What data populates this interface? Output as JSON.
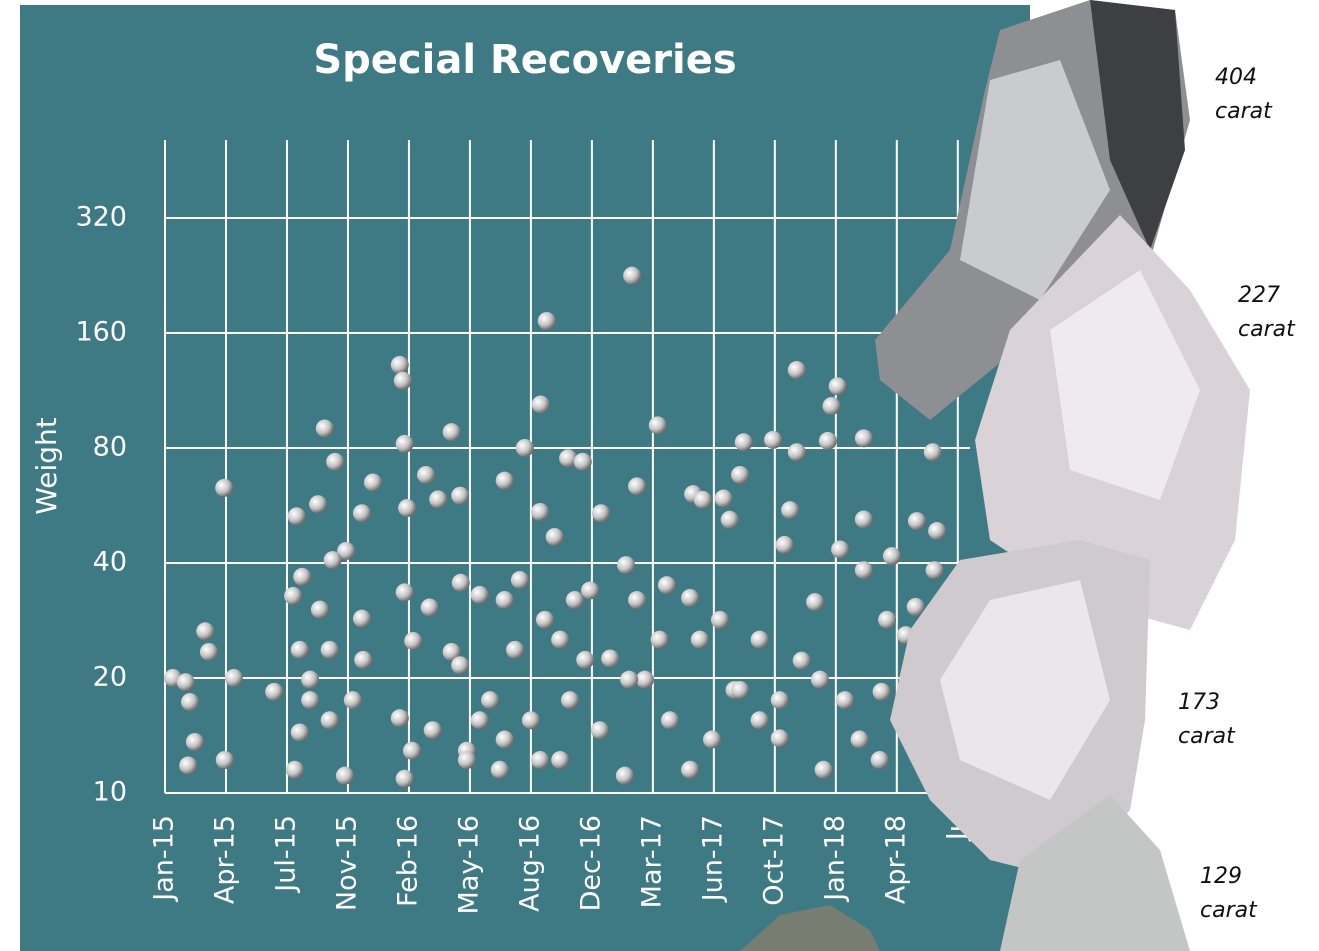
{
  "chart_data": {
    "type": "scatter",
    "title": "Special Recoveries",
    "y_label": "Weight",
    "yscale": "log",
    "grid": true,
    "color": "#c4c4c4",
    "ylim": [
      10,
      512
    ],
    "yticks": [
      10,
      20,
      40,
      80,
      160,
      320
    ],
    "xlim": [
      0,
      13.2
    ],
    "xticks": [
      {
        "value": 0,
        "label": "Jan-15"
      },
      {
        "value": 1,
        "label": "Apr-15"
      },
      {
        "value": 2,
        "label": "Jul-15"
      },
      {
        "value": 3,
        "label": "Nov-15"
      },
      {
        "value": 4,
        "label": "Feb-16"
      },
      {
        "value": 5,
        "label": "May-16"
      },
      {
        "value": 6,
        "label": "Aug-16"
      },
      {
        "value": 7,
        "label": "Dec-16"
      },
      {
        "value": 8,
        "label": "Mar-17"
      },
      {
        "value": 9,
        "label": "Jun-17"
      },
      {
        "value": 10,
        "label": "Oct-17"
      },
      {
        "value": 11,
        "label": "Jan-18"
      },
      {
        "value": 12,
        "label": "Apr-18"
      },
      {
        "value": 13,
        "label": "Ju"
      }
    ],
    "x": [
      0.13,
      0.34,
      0.41,
      0.66,
      0.72,
      0.97,
      1.13,
      0.49,
      0.38,
      0.98,
      1.79,
      2.16,
      2.1,
      2.25,
      2.62,
      2.51,
      2.79,
      2.97,
      2.75,
      2.54,
      2.7,
      2.21,
      2.38,
      2.13,
      2.95,
      3.23,
      3.41,
      3.23,
      3.85,
      3.9,
      3.93,
      3.97,
      3.93,
      4.07,
      4.28,
      4.48,
      4.7,
      4.84,
      4.85,
      4.34,
      4.7,
      4.84,
      3.85,
      3.93,
      4.39,
      4.95,
      5.16,
      5.57,
      5.9,
      6.16,
      6.26,
      6.15,
      6.39,
      6.61,
      6.85,
      7.15,
      7.3,
      7.56,
      7.74,
      7.66,
      7.74,
      8.08,
      8.23,
      8.61,
      8.66,
      8.82,
      9.16,
      9.26,
      9.49,
      9.43,
      9.97,
      10.36,
      10.36,
      10.25,
      10.16,
      10.87,
      11.03,
      10.93,
      11.46,
      11.07,
      11.46,
      11.46,
      11.92,
      12.33,
      12.66,
      12.62,
      12.59,
      12.31,
      12.15,
      11.84,
      11.75,
      10.66,
      10.44,
      10.08,
      9.75,
      9.34,
      8.97,
      8.61,
      8.28,
      7.87,
      7.54,
      7.13,
      6.89,
      6.64,
      6.48,
      6.23,
      6.0,
      5.74,
      5.49,
      5.33,
      5.57,
      5.82,
      6.48,
      6.72,
      6.97,
      7.61,
      8.11,
      8.77,
      9.1,
      9.43,
      9.75,
      10.08,
      10.74,
      11.15,
      11.39,
      11.72,
      10.8,
      4.95,
      5.16,
      5.57,
      6.15,
      2.21,
      2.38,
      2.7,
      3.08,
      3.25,
      4.05
    ],
    "values": [
      20,
      19.5,
      17.3,
      26.5,
      23.4,
      62.9,
      20,
      13.6,
      11.8,
      12.2,
      18.4,
      53,
      32.8,
      36.8,
      90,
      57,
      73.6,
      43,
      40.7,
      30.2,
      23.7,
      14.4,
      17.5,
      11.5,
      11.1,
      54,
      65,
      28.6,
      132,
      120,
      82,
      55.7,
      33.5,
      25,
      68,
      58.7,
      88,
      60,
      35.5,
      30.6,
      23.4,
      21.6,
      15.7,
      10.9,
      14.6,
      12.9,
      33,
      65.7,
      80,
      104,
      172,
      54.4,
      46.8,
      75.2,
      73.6,
      54,
      22.5,
      39.5,
      32,
      226,
      63.5,
      91.7,
      35,
      32.4,
      60.6,
      58.5,
      59,
      51.9,
      82.8,
      68,
      84,
      128,
      78,
      55,
      44.6,
      83.5,
      116,
      103,
      84.8,
      43.4,
      52,
      38.3,
      41.7,
      51.5,
      48.5,
      38.3,
      78,
      30.7,
      25.9,
      28.4,
      18.4,
      31.6,
      22.2,
      13.9,
      15.5,
      18.6,
      13.8,
      11.5,
      15.5,
      19.8,
      11.1,
      14.6,
      22.3,
      17.5,
      12.2,
      28.4,
      15.5,
      23.7,
      11.5,
      17.5,
      32,
      36.1,
      25.2,
      32,
      33.9,
      19.8,
      25.2,
      25.2,
      28.4,
      18.6,
      25.2,
      17.5,
      19.8,
      17.5,
      13.8,
      12.2,
      11.5,
      12.2,
      15.5,
      13.8,
      12.2,
      23.7,
      19.8,
      15.5,
      17.5,
      22.3,
      12.9
    ],
    "annotations": [
      [
        "404",
        "carat"
      ],
      [
        "227",
        "carat"
      ],
      [
        "173",
        "carat"
      ],
      [
        "129",
        "carat"
      ]
    ]
  }
}
